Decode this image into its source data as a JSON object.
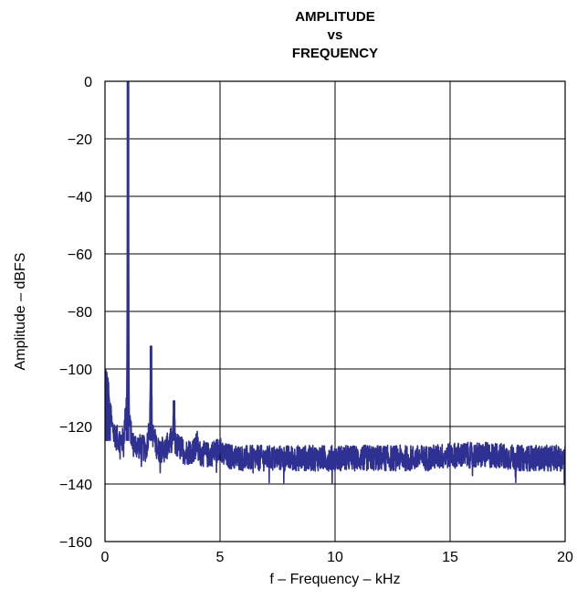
{
  "chart_data": {
    "type": "line",
    "title_lines": [
      "AMPLITUDE",
      "vs",
      "FREQUENCY"
    ],
    "xlabel": "f – Frequency – kHz",
    "ylabel": "Amplitude – dBFS",
    "xlim": [
      0,
      20
    ],
    "ylim": [
      -160,
      0
    ],
    "x_ticks": [
      0,
      5,
      10,
      15,
      20
    ],
    "y_ticks": [
      0,
      -20,
      -40,
      -60,
      -80,
      -100,
      -120,
      -140,
      -160
    ],
    "x_tick_labels": [
      "0",
      "5",
      "10",
      "15",
      "20"
    ],
    "y_tick_labels": [
      "0",
      "−20",
      "−40",
      "−60",
      "−80",
      "−100",
      "−120",
      "−140",
      "−160"
    ],
    "grid": true,
    "legend": "none",
    "series": [
      {
        "color": "#2e3192",
        "x": [
          0.0,
          0.05,
          0.1,
          0.2,
          0.3,
          0.5,
          0.8,
          0.95,
          1.0,
          1.05,
          1.2,
          1.5,
          1.8,
          1.95,
          2.0,
          2.05,
          2.3,
          2.6,
          2.95,
          3.0,
          3.05,
          3.5,
          3.95,
          4.0,
          4.05,
          4.5,
          4.95,
          5.0,
          5.05,
          6.0,
          7.0,
          8.0,
          9.0,
          10.0,
          11.0,
          12.0,
          13.0,
          14.0,
          15.0,
          16.0,
          17.0,
          18.0,
          19.0,
          20.0
        ],
        "y": [
          -100,
          -101,
          -103,
          -112,
          -120,
          -124,
          -125,
          -110,
          0,
          -118,
          -126,
          -127,
          -128,
          -118,
          -92,
          -122,
          -128,
          -128,
          -124,
          -111,
          -126,
          -129,
          -128,
          -124,
          -129,
          -130,
          -128,
          -122,
          -130,
          -131,
          -131,
          -131,
          -131,
          -131,
          -131,
          -131,
          -131,
          -131,
          -130,
          -130,
          -130,
          -131,
          -131,
          -131
        ]
      }
    ]
  }
}
